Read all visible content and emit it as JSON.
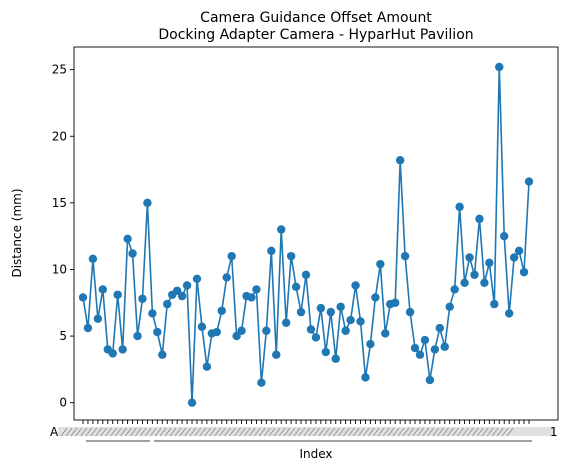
{
  "chart_data": {
    "type": "line",
    "title": [
      "Camera Guidance Offset Amount",
      "Docking Adapter Camera - HyparHut Pavilion"
    ],
    "xlabel": "Index",
    "ylabel": "Distance (mm)",
    "ylim": [
      -1.3,
      26.7
    ],
    "y_ticks": [
      0,
      5,
      10,
      15,
      20,
      25
    ],
    "x_tick_visible_fragments": [
      "A",
      "1"
    ],
    "grid": false,
    "legend": "none",
    "series": [
      {
        "color": "#1f77b4",
        "marker": "circle",
        "values": [
          7.9,
          5.6,
          10.8,
          6.3,
          8.5,
          4.0,
          3.7,
          8.1,
          4.0,
          12.3,
          11.2,
          5.0,
          7.8,
          15.0,
          6.7,
          5.3,
          3.6,
          7.4,
          8.1,
          8.4,
          8.0,
          8.8,
          0.0,
          9.3,
          5.7,
          2.7,
          5.2,
          5.3,
          6.9,
          9.4,
          11.0,
          5.0,
          5.4,
          8.0,
          7.9,
          8.5,
          1.5,
          5.4,
          11.4,
          3.6,
          13.0,
          6.0,
          11.0,
          8.7,
          6.8,
          9.6,
          5.5,
          4.9,
          7.1,
          3.8,
          6.8,
          3.3,
          7.2,
          5.4,
          6.2,
          8.8,
          6.1,
          1.9,
          4.4,
          7.9,
          10.4,
          5.2,
          7.4,
          7.5,
          18.2,
          11.0,
          6.8,
          4.1,
          3.6,
          4.7,
          1.7,
          4.0,
          5.6,
          4.2,
          7.2,
          8.5,
          14.7,
          9.0,
          10.9,
          9.6,
          13.8,
          9.0,
          10.5,
          7.4,
          25.2,
          12.5,
          6.7,
          10.9,
          11.4,
          9.8,
          16.6
        ]
      }
    ]
  }
}
